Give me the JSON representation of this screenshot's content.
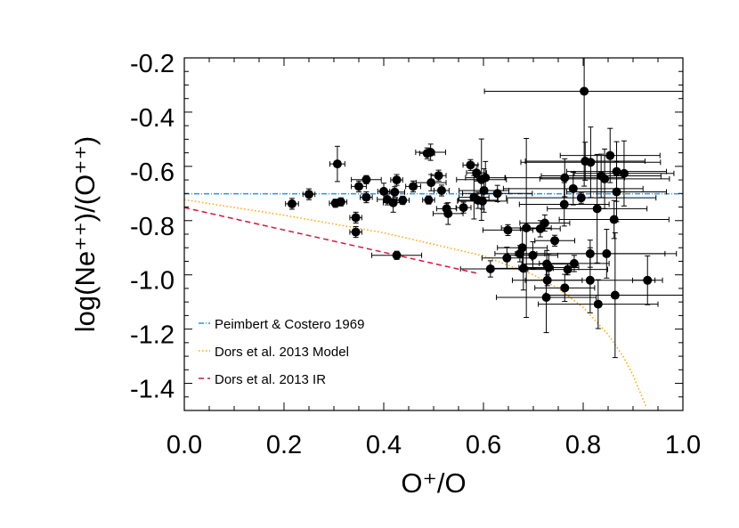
{
  "chart_data": {
    "type": "scatter",
    "xlabel": "O⁺/O",
    "ylabel": "log(Ne⁺⁺)/(O⁺⁺)",
    "xlim": [
      0.0,
      1.0
    ],
    "ylim": [
      -1.5,
      -0.2
    ],
    "x_ticks": [
      "0.0",
      "0.2",
      "0.4",
      "0.6",
      "0.8",
      "1.0"
    ],
    "y_ticks": [
      "-0.2",
      "-0.4",
      "-0.6",
      "-0.8",
      "-1.0",
      "-1.2",
      "-1.4"
    ],
    "grid": false,
    "legend_position": "bottom-left",
    "points_format": [
      "x",
      "y",
      "x_error",
      "y_error"
    ],
    "points": [
      [
        0.216,
        -0.738,
        0.013,
        0.02
      ],
      [
        0.25,
        -0.703,
        0.012,
        0.02
      ],
      [
        0.307,
        -0.591,
        0.015,
        0.065
      ],
      [
        0.303,
        -0.736,
        0.012,
        0.015
      ],
      [
        0.314,
        -0.731,
        0.012,
        0.015
      ],
      [
        0.344,
        -0.789,
        0.012,
        0.02
      ],
      [
        0.344,
        -0.842,
        0.012,
        0.02
      ],
      [
        0.35,
        -0.674,
        0.015,
        0.02
      ],
      [
        0.365,
        -0.649,
        0.03,
        0.015
      ],
      [
        0.365,
        -0.714,
        0.012,
        0.02
      ],
      [
        0.4,
        -0.692,
        0.012,
        0.03
      ],
      [
        0.407,
        -0.722,
        0.02,
        0.02
      ],
      [
        0.419,
        -0.734,
        0.02,
        0.035
      ],
      [
        0.422,
        -0.695,
        0.02,
        0.02
      ],
      [
        0.426,
        -0.65,
        0.012,
        0.02
      ],
      [
        0.426,
        -0.928,
        0.05,
        0.015
      ],
      [
        0.438,
        -0.725,
        0.013,
        0.015
      ],
      [
        0.459,
        -0.674,
        0.015,
        0.02
      ],
      [
        0.487,
        -0.552,
        0.015,
        0.02
      ],
      [
        0.494,
        -0.548,
        0.03,
        0.03
      ],
      [
        0.49,
        -0.724,
        0.012,
        0.015
      ],
      [
        0.495,
        -0.66,
        0.03,
        0.03
      ],
      [
        0.51,
        -0.634,
        0.015,
        0.02
      ],
      [
        0.516,
        -0.689,
        0.015,
        0.02
      ],
      [
        0.526,
        -0.756,
        0.02,
        0.02
      ],
      [
        0.529,
        -0.774,
        0.03,
        0.04
      ],
      [
        0.56,
        -0.752,
        0.015,
        0.02
      ],
      [
        0.574,
        -0.595,
        0.015,
        0.02
      ],
      [
        0.586,
        -0.624,
        0.02,
        0.03
      ],
      [
        0.581,
        -0.714,
        0.03,
        0.08
      ],
      [
        0.589,
        -0.725,
        0.04,
        0.03
      ],
      [
        0.596,
        -0.649,
        0.05,
        0.15
      ],
      [
        0.604,
        -0.642,
        0.04,
        0.06
      ],
      [
        0.601,
        -0.689,
        0.05,
        0.08
      ],
      [
        0.598,
        -0.728,
        0.05,
        0.03
      ],
      [
        0.628,
        -0.7,
        0.07,
        0.03
      ],
      [
        0.614,
        -0.978,
        0.06,
        0.03
      ],
      [
        0.649,
        -0.835,
        0.05,
        0.02
      ],
      [
        0.647,
        -0.938,
        0.05,
        0.04
      ],
      [
        0.673,
        -0.922,
        0.05,
        0.03
      ],
      [
        0.678,
        -0.9,
        0.05,
        0.07
      ],
      [
        0.68,
        -0.976,
        0.06,
        0.08
      ],
      [
        0.686,
        -0.827,
        0.05,
        0.33
      ],
      [
        0.699,
        -0.928,
        0.05,
        0.05
      ],
      [
        0.714,
        -0.83,
        0.04,
        0.03
      ],
      [
        0.723,
        -0.809,
        0.05,
        0.03
      ],
      [
        0.727,
        -0.96,
        0.05,
        0.05
      ],
      [
        0.731,
        -0.973,
        0.06,
        0.05
      ],
      [
        0.728,
        -1.02,
        0.07,
        0.02
      ],
      [
        0.726,
        -1.083,
        0.1,
        0.13
      ],
      [
        0.743,
        -0.874,
        0.04,
        0.02
      ],
      [
        0.763,
        -0.642,
        0.12,
        0.07
      ],
      [
        0.762,
        -0.74,
        0.09,
        0.08
      ],
      [
        0.763,
        -1.048,
        0.06,
        0.05
      ],
      [
        0.769,
        -0.98,
        0.08,
        0.02
      ],
      [
        0.782,
        -0.958,
        0.07,
        0.03
      ],
      [
        0.78,
        -0.682,
        0.14,
        0.06
      ],
      [
        0.796,
        -0.716,
        0.15,
        0.02
      ],
      [
        0.802,
        -0.323,
        0.2,
        0.35
      ],
      [
        0.804,
        -0.581,
        0.12,
        0.07
      ],
      [
        0.815,
        -0.585,
        0.14,
        0.13
      ],
      [
        0.814,
        -0.922,
        0.15,
        0.05
      ],
      [
        0.814,
        -1.02,
        0.13,
        0.12
      ],
      [
        0.828,
        -0.756,
        0.1,
        0.2
      ],
      [
        0.83,
        -1.108,
        0.12,
        0.09
      ],
      [
        0.836,
        -0.635,
        0.12,
        0.08
      ],
      [
        0.843,
        -0.646,
        0.13,
        0.11
      ],
      [
        0.847,
        -0.922,
        0.14,
        0.09
      ],
      [
        0.854,
        -0.56,
        0.1,
        0.1
      ],
      [
        0.862,
        -0.796,
        0.11,
        0.07
      ],
      [
        0.864,
        -1.075,
        0.14,
        0.23
      ],
      [
        0.867,
        -0.619,
        0.1,
        0.11
      ],
      [
        0.867,
        -0.694,
        0.1,
        0.11
      ],
      [
        0.882,
        -0.626,
        0.1,
        0.12
      ],
      [
        0.929,
        -1.02,
        0.03,
        0.09
      ]
    ],
    "lines": [
      {
        "name": "Peimbert & Costero 1969",
        "style": "dash-dot",
        "color": "#2196f3",
        "x": [
          0.0,
          1.0
        ],
        "y": [
          -0.701,
          -0.701
        ]
      },
      {
        "name": "Dors et al. 2013 Model",
        "style": "dotted",
        "color": "#ffa500",
        "x": [
          0.0,
          0.2,
          0.4,
          0.6,
          0.7,
          0.75,
          0.8,
          0.85,
          0.88,
          0.9,
          0.926
        ],
        "y": [
          -0.723,
          -0.78,
          -0.845,
          -0.93,
          -1.0,
          -1.05,
          -1.12,
          -1.22,
          -1.3,
          -1.37,
          -1.485
        ]
      },
      {
        "name": "Dors et al. 2013 IR",
        "style": "dashed",
        "color": "#dc143c",
        "x": [
          0.0,
          0.589
        ],
        "y": [
          -0.752,
          -0.995
        ]
      }
    ]
  }
}
